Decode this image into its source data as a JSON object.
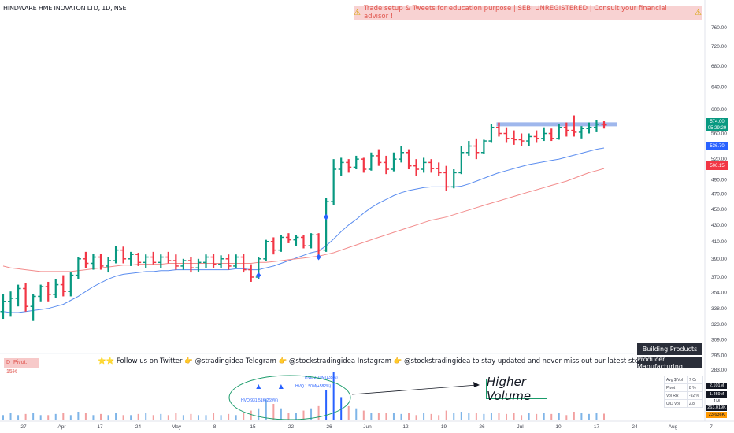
{
  "header": {
    "title": "HINDWARE HME INOVATON LTD, 1D, NSE",
    "disclaimer": "Trade setup & Tweets for education purpose | SEBI UNREGISTERED | Consult your financial advisor !",
    "warn_icon": "warning-icon"
  },
  "ticker": {
    "text": "⭐⭐ Follow us on Twitter 👉 @stradingidea    Telegram 👉 @stockstradingidea   Instagram 👉 @stockstradingidea to stay updated and never miss out our latest stock updates. ! ⭐⭐"
  },
  "pivot_badge": "D_Pivot: 15%",
  "sectors": [
    "Building Products",
    "Producer Manufacturing"
  ],
  "stats": [
    [
      "Avg $ Vol",
      "7 Cr"
    ],
    [
      "Pivot",
      "8 %"
    ],
    [
      "Vol RR",
      "-92 %"
    ],
    [
      "U/D Vol",
      "2.8"
    ]
  ],
  "annotation": {
    "callout": "Higher Volume"
  },
  "price_tags": [
    {
      "label": "574.00",
      "sub": "05:29:29",
      "color": "#089981",
      "value": 574
    },
    {
      "label": "536.70",
      "color": "#2962ff",
      "value": 536.7
    },
    {
      "label": "506.15",
      "color": "#f23645",
      "value": 506.15
    }
  ],
  "volume_tags": [
    {
      "label": "2.101M",
      "bg": "#131722",
      "fg": "#ffffff"
    },
    {
      "label": "1.459M",
      "bg": "#131722",
      "fg": "#ffffff"
    },
    {
      "label": "1M",
      "bg": "#ffffff",
      "fg": "#131722"
    },
    {
      "label": "263.019K",
      "bg": "#131722",
      "fg": "#ffffff"
    },
    {
      "label": "23.636K",
      "bg": "#ff9800",
      "fg": "#131722"
    }
  ],
  "chart_data": {
    "type": "bar",
    "title": "HINDWARE HME INOVATON LTD, 1D, NSE",
    "y_scale": "log",
    "ylim": [
      283,
      790
    ],
    "y_ticks": [
      760,
      720,
      680,
      640,
      600,
      560,
      520,
      490,
      470,
      450,
      430,
      410,
      390,
      370,
      354,
      338,
      323,
      309,
      295,
      283
    ],
    "x_ticks": [
      "27",
      "Apr",
      "17",
      "24",
      "May",
      "8",
      "15",
      "22",
      "26",
      "Jun",
      "12",
      "19",
      "26",
      "Jul",
      "10",
      "17",
      "24",
      "Aug",
      "7"
    ],
    "ohlc": [
      [
        335,
        352,
        328,
        345
      ],
      [
        345,
        355,
        330,
        348
      ],
      [
        348,
        362,
        340,
        358
      ],
      [
        358,
        364,
        335,
        340
      ],
      [
        340,
        352,
        326,
        350
      ],
      [
        350,
        362,
        345,
        360
      ],
      [
        360,
        365,
        345,
        352
      ],
      [
        352,
        368,
        348,
        362
      ],
      [
        362,
        372,
        350,
        355
      ],
      [
        355,
        375,
        350,
        372
      ],
      [
        372,
        392,
        368,
        390
      ],
      [
        390,
        398,
        380,
        385
      ],
      [
        385,
        396,
        378,
        392
      ],
      [
        392,
        396,
        378,
        382
      ],
      [
        382,
        392,
        375,
        388
      ],
      [
        388,
        405,
        385,
        400
      ],
      [
        400,
        404,
        385,
        390
      ],
      [
        390,
        398,
        382,
        395
      ],
      [
        395,
        397,
        382,
        386
      ],
      [
        386,
        395,
        380,
        392
      ],
      [
        392,
        398,
        384,
        386
      ],
      [
        386,
        395,
        380,
        392
      ],
      [
        392,
        398,
        385,
        388
      ],
      [
        388,
        395,
        378,
        382
      ],
      [
        382,
        390,
        378,
        388
      ],
      [
        388,
        392,
        375,
        380
      ],
      [
        380,
        390,
        376,
        386
      ],
      [
        386,
        395,
        380,
        392
      ],
      [
        392,
        396,
        380,
        384
      ],
      [
        384,
        394,
        380,
        390
      ],
      [
        390,
        395,
        378,
        382
      ],
      [
        382,
        395,
        380,
        392
      ],
      [
        392,
        396,
        375,
        378
      ],
      [
        378,
        384,
        365,
        370
      ],
      [
        370,
        392,
        368,
        390
      ],
      [
        390,
        412,
        388,
        410
      ],
      [
        410,
        415,
        395,
        400
      ],
      [
        400,
        418,
        398,
        415
      ],
      [
        415,
        420,
        408,
        412
      ],
      [
        412,
        418,
        405,
        415
      ],
      [
        415,
        418,
        402,
        405
      ],
      [
        405,
        420,
        402,
        418
      ],
      [
        418,
        420,
        390,
        400
      ],
      [
        400,
        465,
        398,
        460
      ],
      [
        460,
        520,
        455,
        505
      ],
      [
        505,
        522,
        495,
        515
      ],
      [
        515,
        520,
        500,
        508
      ],
      [
        508,
        525,
        505,
        520
      ],
      [
        520,
        522,
        500,
        505
      ],
      [
        505,
        530,
        503,
        525
      ],
      [
        525,
        535,
        510,
        515
      ],
      [
        515,
        525,
        498,
        505
      ],
      [
        505,
        530,
        502,
        520
      ],
      [
        520,
        540,
        515,
        530
      ],
      [
        530,
        535,
        505,
        510
      ],
      [
        510,
        520,
        495,
        505
      ],
      [
        505,
        522,
        500,
        515
      ],
      [
        515,
        520,
        500,
        506
      ],
      [
        506,
        515,
        495,
        500
      ],
      [
        500,
        510,
        475,
        480
      ],
      [
        480,
        505,
        478,
        500
      ],
      [
        500,
        540,
        498,
        530
      ],
      [
        530,
        548,
        525,
        540
      ],
      [
        540,
        552,
        520,
        530
      ],
      [
        530,
        550,
        528,
        548
      ],
      [
        548,
        575,
        545,
        570
      ],
      [
        570,
        578,
        555,
        560
      ],
      [
        560,
        570,
        545,
        552
      ],
      [
        552,
        565,
        542,
        550
      ],
      [
        550,
        560,
        540,
        548
      ],
      [
        548,
        560,
        540,
        555
      ],
      [
        555,
        565,
        545,
        552
      ],
      [
        552,
        570,
        548,
        560
      ],
      [
        560,
        568,
        548,
        552
      ],
      [
        552,
        575,
        550,
        570
      ],
      [
        570,
        578,
        555,
        565
      ],
      [
        565,
        590,
        555,
        562
      ],
      [
        562,
        572,
        552,
        568
      ],
      [
        568,
        578,
        560,
        570
      ],
      [
        570,
        582,
        562,
        575
      ],
      [
        575,
        580,
        568,
        574
      ]
    ],
    "series": [
      {
        "name": "",
        "color": "#5b8def",
        "values": [
          335,
          334,
          334,
          335,
          336,
          337,
          338,
          340,
          342,
          346,
          350,
          355,
          360,
          364,
          368,
          371,
          373,
          374,
          375,
          376,
          376,
          377,
          377,
          378,
          378,
          378,
          378,
          378,
          378,
          378,
          378,
          379,
          379,
          378,
          378,
          380,
          382,
          385,
          388,
          391,
          394,
          397,
          399,
          405,
          413,
          422,
          430,
          437,
          445,
          452,
          458,
          463,
          468,
          472,
          475,
          477,
          479,
          480,
          480,
          480,
          480,
          481,
          484,
          488,
          492,
          496,
          500,
          503,
          506,
          509,
          512,
          514,
          516,
          518,
          520,
          523,
          526,
          529,
          532,
          535,
          537
        ]
      },
      {
        "name": "",
        "color": "#f28b8b",
        "values": [
          382,
          380,
          379,
          378,
          377,
          376,
          376,
          376,
          376,
          376,
          377,
          378,
          379,
          380,
          381,
          382,
          383,
          383,
          384,
          384,
          384,
          384,
          385,
          385,
          385,
          385,
          385,
          385,
          385,
          385,
          385,
          385,
          385,
          385,
          386,
          386,
          387,
          388,
          389,
          390,
          391,
          392,
          393,
          395,
          397,
          400,
          403,
          406,
          409,
          412,
          415,
          418,
          421,
          424,
          427,
          430,
          433,
          436,
          438,
          440,
          443,
          446,
          449,
          452,
          455,
          458,
          461,
          464,
          467,
          470,
          473,
          476,
          479,
          482,
          485,
          488,
          492,
          496,
          500,
          503,
          506
        ]
      }
    ],
    "resistance_level": 575,
    "volume": [
      0.2,
      0.3,
      0.2,
      0.25,
      0.3,
      0.2,
      0.2,
      0.25,
      0.3,
      0.2,
      0.35,
      0.3,
      0.2,
      0.25,
      0.2,
      0.3,
      0.2,
      0.2,
      0.25,
      0.3,
      0.2,
      0.25,
      0.2,
      0.3,
      0.2,
      0.25,
      0.2,
      0.2,
      0.3,
      0.2,
      0.25,
      0.2,
      0.3,
      0.4,
      0.5,
      0.9,
      0.7,
      0.5,
      0.3,
      0.3,
      0.4,
      0.5,
      0.6,
      1.3,
      2.1,
      1.0,
      0.6,
      0.5,
      0.4,
      0.3,
      0.3,
      0.3,
      0.3,
      0.25,
      0.3,
      0.2,
      0.3,
      0.25,
      0.2,
      0.4,
      0.3,
      0.35,
      0.3,
      0.3,
      0.25,
      0.3,
      0.3,
      0.25,
      0.3,
      0.2,
      0.3,
      0.25,
      0.3,
      0.25,
      0.3,
      0.2,
      0.35,
      0.3,
      0.25,
      0.3,
      0.263
    ],
    "volume_annotations": [
      "HVQ 931.51K(269%)",
      "HVE 2.10M(135%)",
      "HVQ 1.50M(+582%)"
    ]
  }
}
